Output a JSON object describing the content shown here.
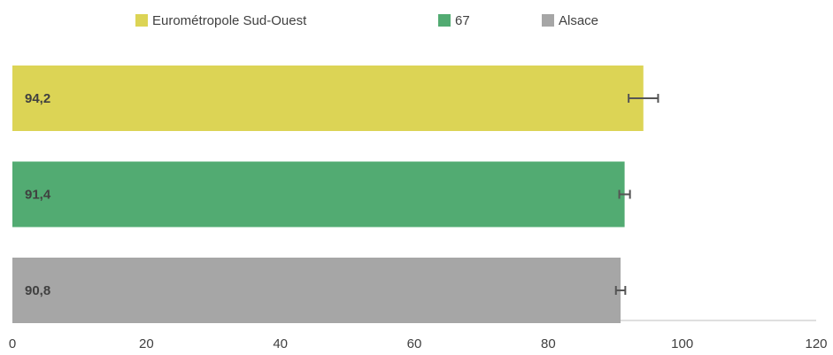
{
  "chart_data": {
    "type": "bar",
    "orientation": "horizontal",
    "series": [
      {
        "name": "Eurométropole Sud-Ouest",
        "color": "#dcd455",
        "values": [
          94.2
        ],
        "errors": [
          2.2
        ],
        "value_labels": [
          "94,2"
        ]
      },
      {
        "name": "67",
        "color": "#52ab72",
        "values": [
          91.4
        ],
        "errors": [
          0.8
        ],
        "value_labels": [
          "91,4"
        ]
      },
      {
        "name": "Alsace",
        "color": "#a6a6a6",
        "values": [
          90.8
        ],
        "errors": [
          0.7
        ],
        "value_labels": [
          "90,8"
        ]
      }
    ],
    "xlim": [
      0,
      120
    ],
    "xticks": [
      0,
      20,
      40,
      60,
      80,
      100,
      120
    ],
    "grid": false,
    "legend": "top"
  }
}
